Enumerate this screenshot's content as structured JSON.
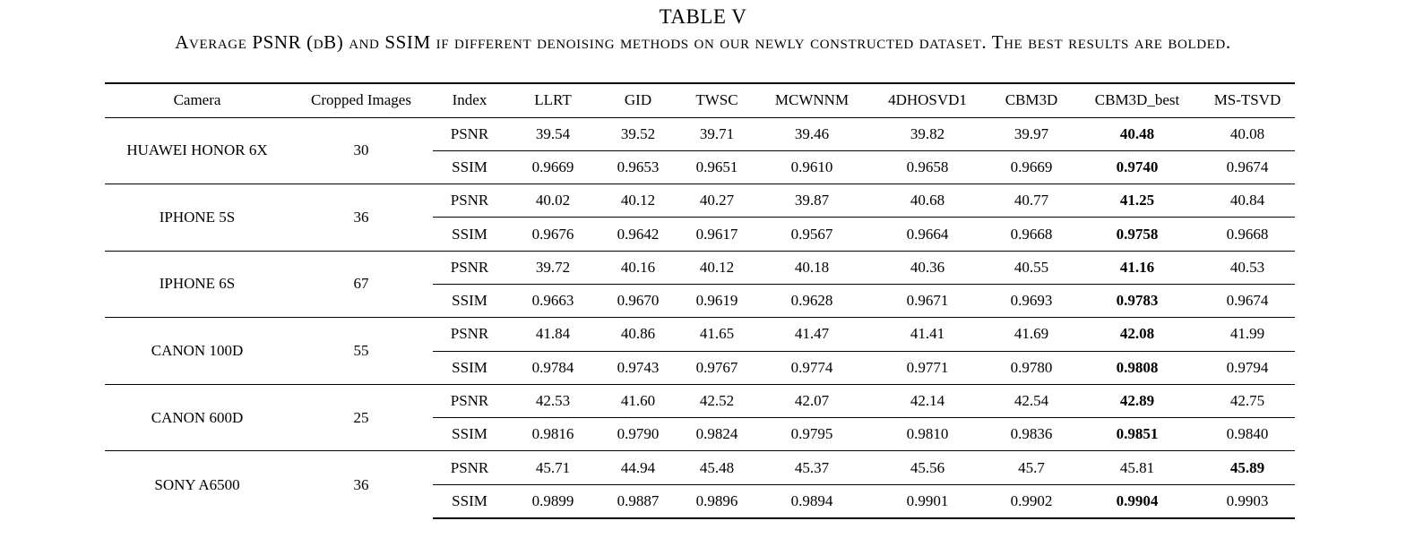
{
  "table_label": "TABLE V",
  "caption": "Average PSNR (dB) and SSIM if different denoising methods on our newly constructed dataset. The best results are bolded.",
  "headers": [
    "Camera",
    "Cropped Images",
    "Index",
    "LLRT",
    "GID",
    "TWSC",
    "MCWNNM",
    "4DHOSVD1",
    "CBM3D",
    "CBM3D_best",
    "MS-TSVD"
  ],
  "rows": [
    {
      "camera": "HUAWEI HONOR 6X",
      "cropped": "30",
      "psnr": [
        "39.54",
        "39.52",
        "39.71",
        "39.46",
        "39.82",
        "39.97",
        "40.48",
        "40.08"
      ],
      "psnr_best": 6,
      "ssim": [
        "0.9669",
        "0.9653",
        "0.9651",
        "0.9610",
        "0.9658",
        "0.9669",
        "0.9740",
        "0.9674"
      ],
      "ssim_best": 6
    },
    {
      "camera": "IPHONE 5S",
      "cropped": "36",
      "psnr": [
        "40.02",
        "40.12",
        "40.27",
        "39.87",
        "40.68",
        "40.77",
        "41.25",
        "40.84"
      ],
      "psnr_best": 6,
      "ssim": [
        "0.9676",
        "0.9642",
        "0.9617",
        "0.9567",
        "0.9664",
        "0.9668",
        "0.9758",
        "0.9668"
      ],
      "ssim_best": 6
    },
    {
      "camera": "IPHONE 6S",
      "cropped": "67",
      "psnr": [
        "39.72",
        "40.16",
        "40.12",
        "40.18",
        "40.36",
        "40.55",
        "41.16",
        "40.53"
      ],
      "psnr_best": 6,
      "ssim": [
        "0.9663",
        "0.9670",
        "0.9619",
        "0.9628",
        "0.9671",
        "0.9693",
        "0.9783",
        "0.9674"
      ],
      "ssim_best": 6
    },
    {
      "camera": "CANON 100D",
      "cropped": "55",
      "psnr": [
        "41.84",
        "40.86",
        "41.65",
        "41.47",
        "41.41",
        "41.69",
        "42.08",
        "41.99"
      ],
      "psnr_best": 6,
      "ssim": [
        "0.9784",
        "0.9743",
        "0.9767",
        "0.9774",
        "0.9771",
        "0.9780",
        "0.9808",
        "0.9794"
      ],
      "ssim_best": 6
    },
    {
      "camera": "CANON 600D",
      "cropped": "25",
      "psnr": [
        "42.53",
        "41.60",
        "42.52",
        "42.07",
        "42.14",
        "42.54",
        "42.89",
        "42.75"
      ],
      "psnr_best": 6,
      "ssim": [
        "0.9816",
        "0.9790",
        "0.9824",
        "0.9795",
        "0.9810",
        "0.9836",
        "0.9851",
        "0.9840"
      ],
      "ssim_best": 6
    },
    {
      "camera": "SONY A6500",
      "cropped": "36",
      "psnr": [
        "45.71",
        "44.94",
        "45.48",
        "45.37",
        "45.56",
        "45.7",
        "45.81",
        "45.89"
      ],
      "psnr_best": 7,
      "ssim": [
        "0.9899",
        "0.9887",
        "0.9896",
        "0.9894",
        "0.9901",
        "0.9902",
        "0.9904",
        "0.9903"
      ],
      "ssim_best": 6
    }
  ],
  "index_labels": {
    "psnr": "PSNR",
    "ssim": "SSIM"
  }
}
